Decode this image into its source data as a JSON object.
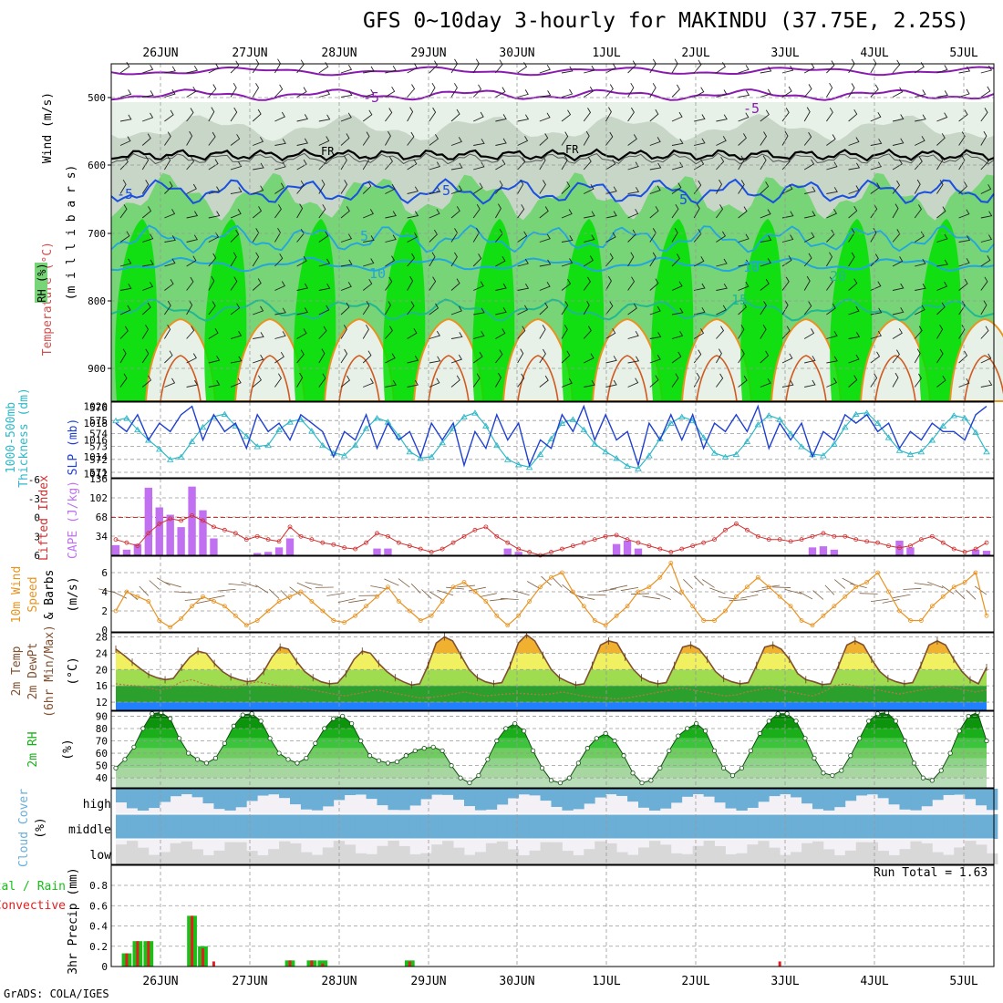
{
  "title": "GFS 0~10day 3-hourly for MAKINDU (37.75E, 2.25S)",
  "credit": "GrADS: COLA/IGES",
  "run_total": "Run Total = 1.63",
  "colors": {
    "rh_light": "#e8f1e8",
    "rh_mid": "#c8d6c8",
    "rh_dark": "#9eb39e",
    "rh_green": "#77d477",
    "rh_bright": "#00e000",
    "freezing": "#000000",
    "t_purple": "#8a1ab0",
    "t_blue": "#1a4fe0",
    "t_cyan": "#22a5e0",
    "t_teal": "#20b890",
    "t_orange": "#e89320",
    "slp": "#2040d0",
    "thickness": "#30b8c8",
    "cape": "#c070f0",
    "lifted": "#d03030",
    "wind": "#e89320",
    "temp_line": "#805030",
    "rh2m": "#18b018",
    "cloud": "#6baed6",
    "precip_total": "#18c018",
    "precip_conv": "#e02020"
  },
  "date_labels": [
    "26JUN",
    "27JUN",
    "28JUN",
    "29JUN",
    "30JUN",
    "1JUL",
    "2JUL",
    "3JUL",
    "4JUL",
    "5JUL"
  ],
  "panel_labels": {
    "p1": {
      "wind": "Wind (m/s)",
      "temp": "Temperature (°C)",
      "rh": "RH (%)",
      "mb": "(m i l l i b a r s)",
      "fr": "FR"
    },
    "p2": {
      "thick": "1000-500mb",
      "thick2": "Thickness (dm)",
      "slp": "SLP (mb)"
    },
    "p3": {
      "li": "Lifted Index",
      "cape": "CAPE (J/kg)"
    },
    "p4": {
      "a": "10m Wind",
      "b": "Speed",
      "c": "& Barbs",
      "u": "(m/s)"
    },
    "p5": {
      "a": "2m Temp",
      "b": "2m DewPt",
      "c": "(6hr Min/Max)",
      "u": "(°C)"
    },
    "p6": {
      "a": "2m RH",
      "u": "(%)"
    },
    "p7": {
      "a": "Cloud Cover",
      "u": "(%)",
      "high": "high",
      "middle": "middle",
      "low": "low"
    },
    "p8": {
      "a": "Total / Rain",
      "b": "Convective",
      "c": "3hr Precip (mm)"
    }
  },
  "chart_data": [
    {
      "type": "heatmap",
      "name": "vertical cross-section",
      "ylabel": "(millibars)",
      "y_ticks": [
        "500",
        "600",
        "700",
        "800",
        "900"
      ],
      "contour_labels": [
        "-5",
        "-5",
        "FR",
        "FR",
        "-5",
        "-5",
        "5",
        "5",
        "10",
        "10",
        "15",
        "20"
      ]
    },
    {
      "type": "line",
      "y_left_ticks": [
        "576",
        "575",
        "574",
        "573",
        "572",
        "571"
      ],
      "y_right_ticks": [
        "1020",
        "1018",
        "1016",
        "1014",
        "1012"
      ],
      "slp": [
        1018,
        1017,
        1019,
        1016,
        1018,
        1017,
        1019,
        1020,
        1016,
        1019,
        1017,
        1018,
        1015,
        1019,
        1017,
        1018,
        1016,
        1019,
        1018,
        1017,
        1014,
        1017,
        1016,
        1019,
        1015,
        1018,
        1016,
        1017,
        1014,
        1018,
        1016,
        1018,
        1013,
        1017,
        1015,
        1019,
        1016,
        1018,
        1013,
        1016,
        1015,
        1019,
        1017,
        1020,
        1016,
        1019,
        1016,
        1017,
        1013,
        1018,
        1016,
        1019,
        1016,
        1019,
        1015,
        1018,
        1017,
        1019,
        1017,
        1020,
        1015,
        1018,
        1016,
        1018,
        1014,
        1017,
        1016,
        1019,
        1018,
        1019,
        1017,
        1018,
        1015,
        1017,
        1016,
        1018,
        1017,
        1017,
        1016,
        1019,
        1020
      ],
      "thickness": [
        575.0,
        575.2,
        574.3,
        573.5,
        572.8,
        572.0,
        572.2,
        573.4,
        574.5,
        575.3,
        575.5,
        574.6,
        573.8,
        573.0,
        573.1,
        574.3,
        574.9,
        575.1,
        574.2,
        573.1,
        572.5,
        572.3,
        573.1,
        574.4,
        575.2,
        574.9,
        573.8,
        572.6,
        572.1,
        572.2,
        573.3,
        574.4,
        575.3,
        575.6,
        574.6,
        573.1,
        572.0,
        571.6,
        571.4,
        572.4,
        573.6,
        574.8,
        575.1,
        574.3,
        573.2,
        572.6,
        572.1,
        571.5,
        571.3,
        572.3,
        573.6,
        574.8,
        575.3,
        575.0,
        573.7,
        572.5,
        572.2,
        572.4,
        573.4,
        574.7,
        575.4,
        575.1,
        574.0,
        573.0,
        572.4,
        572.3,
        573.2,
        574.5,
        575.5,
        575.6,
        574.8,
        573.7,
        572.7,
        572.4,
        572.6,
        573.5,
        574.6,
        575.4,
        575.2,
        574.1,
        572.6
      ]
    },
    {
      "type": "bar",
      "y_left_ticks": [
        "-6",
        "-3",
        "0",
        "3",
        "6"
      ],
      "y_right_ticks": [
        "136",
        "102",
        "68",
        "34"
      ],
      "cape": [
        18,
        10,
        20,
        120,
        85,
        72,
        50,
        122,
        80,
        30,
        0,
        0,
        0,
        4,
        6,
        14,
        30,
        0,
        0,
        0,
        0,
        0,
        0,
        0,
        12,
        12,
        0,
        0,
        0,
        0,
        0,
        0,
        0,
        0,
        0,
        0,
        12,
        6,
        0,
        0,
        0,
        0,
        0,
        0,
        0,
        0,
        20,
        26,
        12,
        0,
        0,
        0,
        0,
        0,
        0,
        0,
        0,
        0,
        0,
        0,
        0,
        0,
        0,
        0,
        14,
        16,
        10,
        0,
        0,
        0,
        0,
        0,
        26,
        14,
        0,
        0,
        0,
        0,
        0,
        10,
        8
      ],
      "lifted_index": [
        3.5,
        4.0,
        4.5,
        2.5,
        1.0,
        0.2,
        0.5,
        -0.3,
        0.5,
        1.5,
        2.0,
        2.5,
        3.5,
        3.0,
        3.5,
        3.8,
        1.5,
        3.0,
        3.5,
        4.0,
        4.3,
        4.8,
        5.0,
        4.0,
        2.5,
        3.0,
        4.0,
        4.5,
        5.0,
        5.5,
        5.0,
        4.0,
        3.0,
        2.0,
        1.5,
        3.0,
        4.0,
        5.0,
        5.5,
        6.0,
        5.5,
        5.0,
        4.5,
        4.0,
        3.5,
        3.0,
        2.8,
        3.5,
        4.0,
        4.5,
        5.0,
        5.5,
        5.0,
        4.5,
        4.0,
        3.5,
        2.0,
        1.0,
        2.0,
        3.0,
        3.5,
        3.5,
        3.8,
        3.5,
        3.0,
        2.5,
        3.0,
        3.0,
        3.5,
        3.8,
        4.0,
        4.5,
        4.8,
        4.5,
        3.5,
        3.0,
        4.0,
        5.0,
        5.5,
        5.0,
        4.0
      ]
    },
    {
      "type": "line",
      "y_ticks": [
        "0",
        "2",
        "4",
        "6"
      ],
      "wind_speed": [
        2.0,
        4.0,
        3.5,
        3.0,
        1.0,
        0.3,
        1.2,
        2.5,
        3.5,
        3.0,
        2.5,
        1.5,
        0.5,
        1.0,
        2.0,
        3.0,
        3.5,
        4.0,
        3.0,
        2.0,
        1.0,
        0.8,
        1.5,
        2.5,
        3.5,
        4.5,
        3.0,
        2.0,
        1.0,
        1.5,
        3.0,
        4.5,
        5.0,
        4.0,
        3.0,
        1.5,
        0.5,
        1.5,
        3.0,
        4.5,
        5.5,
        6.0,
        4.0,
        2.5,
        1.0,
        0.5,
        1.5,
        2.5,
        4.0,
        4.5,
        5.5,
        7.0,
        4.0,
        2.5,
        1.0,
        1.0,
        2.0,
        3.5,
        4.5,
        5.5,
        4.5,
        3.5,
        2.5,
        1.0,
        0.5,
        1.5,
        2.5,
        3.5,
        4.5,
        5.0,
        6.0,
        4.0,
        2.0,
        1.0,
        1.0,
        2.5,
        3.5,
        4.5,
        5.0,
        6.0,
        1.5
      ]
    },
    {
      "type": "area",
      "y_ticks": [
        "12",
        "16",
        "20",
        "24",
        "28"
      ],
      "temp": [
        25.0,
        23.5,
        21.8,
        20.2,
        18.8,
        18.0,
        17.5,
        17.8,
        20.5,
        23.0,
        24.5,
        24.0,
        21.5,
        19.5,
        18.2,
        17.5,
        17.0,
        17.3,
        19.5,
        23.0,
        25.5,
        25.0,
        22.0,
        19.5,
        18.0,
        17.0,
        16.5,
        16.7,
        19.0,
        22.5,
        24.5,
        24.0,
        21.5,
        19.5,
        18.0,
        17.0,
        16.2,
        16.5,
        21.0,
        26.5,
        28.0,
        27.0,
        23.5,
        20.0,
        18.0,
        17.0,
        16.5,
        16.8,
        21.0,
        26.5,
        28.5,
        27.0,
        23.5,
        20.0,
        18.0,
        17.0,
        16.2,
        16.5,
        21.0,
        26.0,
        27.0,
        26.5,
        23.0,
        20.0,
        18.0,
        17.0,
        16.5,
        16.8,
        21.0,
        25.5,
        26.0,
        25.0,
        22.5,
        19.5,
        17.8,
        17.0,
        16.5,
        16.8,
        21.0,
        25.5,
        26.0,
        25.0,
        22.5,
        19.0,
        17.5,
        17.0,
        16.3,
        16.5,
        21.0,
        26.0,
        27.0,
        26.0,
        22.5,
        19.5,
        17.8,
        17.0,
        16.5,
        16.8,
        21.0,
        26.0,
        27.0,
        26.0,
        22.5,
        19.5,
        17.5,
        16.5,
        20.5
      ],
      "dewpoint": [
        16.5,
        16.2,
        16.0,
        15.5,
        15.0,
        15.5,
        17.0,
        17.5,
        16.5,
        16.0,
        15.5,
        15.5,
        16.5,
        17.0,
        16.5,
        16.0,
        16.0,
        15.5,
        15.0,
        14.5,
        14.0,
        13.5,
        14.0,
        14.5,
        15.0,
        14.5,
        14.0,
        13.5,
        13.0,
        13.2,
        13.5,
        14.0,
        14.5,
        14.0,
        13.5,
        13.8,
        14.0,
        14.2,
        14.0,
        13.8,
        14.0,
        14.5,
        14.0,
        13.5,
        13.2,
        13.0,
        12.8,
        13.0,
        13.5,
        14.0,
        14.5,
        15.0,
        15.5,
        15.0,
        14.5,
        14.0,
        13.5,
        13.8,
        14.5,
        15.0,
        15.5,
        15.0,
        14.5,
        14.0,
        13.5,
        14.5,
        16.0,
        16.5,
        16.0,
        15.5,
        15.0,
        14.5,
        14.0,
        14.5,
        15.0,
        15.5,
        16.0,
        15.5,
        15.0,
        14.5,
        15.0
      ]
    },
    {
      "type": "area",
      "y_ticks": [
        "40",
        "50",
        "60",
        "70",
        "80",
        "90"
      ],
      "rh": [
        48,
        55,
        65,
        80,
        92,
        93,
        88,
        72,
        60,
        55,
        52,
        56,
        68,
        82,
        91,
        92,
        86,
        72,
        60,
        55,
        52,
        56,
        68,
        80,
        88,
        90,
        84,
        70,
        58,
        54,
        52,
        53,
        58,
        62,
        64,
        65,
        62,
        50,
        40,
        36,
        42,
        55,
        70,
        80,
        84,
        78,
        62,
        48,
        38,
        36,
        40,
        52,
        64,
        72,
        76,
        70,
        58,
        44,
        36,
        38,
        48,
        62,
        74,
        80,
        84,
        78,
        62,
        48,
        42,
        48,
        62,
        76,
        86,
        92,
        92,
        86,
        72,
        56,
        44,
        42,
        46,
        58,
        72,
        86,
        92,
        93,
        86,
        70,
        52,
        40,
        38,
        46,
        60,
        78,
        90,
        93,
        70
      ]
    },
    {
      "type": "heatmap",
      "name": "cloud cover",
      "rows": [
        "high",
        "middle",
        "low"
      ]
    },
    {
      "type": "bar",
      "y_ticks": [
        "0",
        "0.2",
        "0.4",
        "0.6",
        "0.8"
      ],
      "precip_total": [
        0,
        0.13,
        0.25,
        0.25,
        0,
        0,
        0,
        0.5,
        0.2,
        0,
        0,
        0,
        0,
        0,
        0,
        0,
        0.06,
        0,
        0.06,
        0.06,
        0,
        0,
        0,
        0,
        0,
        0,
        0,
        0.06,
        0,
        0,
        0,
        0,
        0,
        0,
        0,
        0,
        0,
        0,
        0,
        0,
        0,
        0,
        0,
        0,
        0,
        0,
        0,
        0,
        0,
        0,
        0,
        0,
        0,
        0,
        0,
        0,
        0,
        0,
        0,
        0,
        0,
        0,
        0,
        0,
        0,
        0,
        0,
        0,
        0,
        0,
        0,
        0,
        0,
        0,
        0,
        0,
        0,
        0,
        0,
        0,
        0
      ],
      "precip_conv": [
        0,
        0.13,
        0.25,
        0.25,
        0,
        0,
        0,
        0.5,
        0.18,
        0.05,
        0,
        0,
        0,
        0,
        0,
        0,
        0.06,
        0,
        0.06,
        0.03,
        0,
        0,
        0,
        0,
        0,
        0,
        0,
        0.05,
        0,
        0,
        0,
        0,
        0,
        0,
        0,
        0,
        0,
        0,
        0,
        0,
        0,
        0,
        0,
        0,
        0,
        0,
        0,
        0,
        0,
        0,
        0,
        0,
        0,
        0,
        0,
        0,
        0,
        0,
        0,
        0,
        0,
        0.05,
        0,
        0,
        0,
        0,
        0,
        0,
        0,
        0,
        0,
        0,
        0,
        0,
        0,
        0,
        0,
        0,
        0,
        0,
        0
      ]
    }
  ]
}
